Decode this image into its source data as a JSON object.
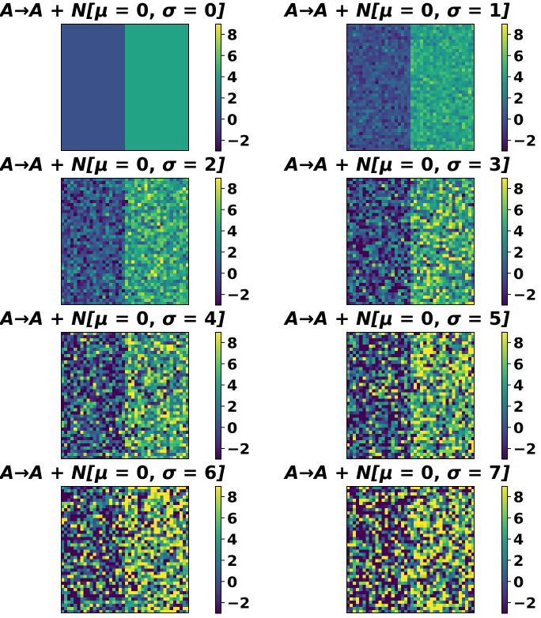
{
  "chart_data": {
    "type": "heatmap",
    "layout": "4 rows x 2 columns",
    "description_of_data": "Each panel shows a 2-region image (left half value 0, right half value 4) with added Gaussian noise N[mu, sigma].",
    "base_image": {
      "rows": 40,
      "cols": 40,
      "left_value": 0,
      "right_value": 4
    },
    "colormap": "viridis",
    "clim": [
      -3,
      9
    ],
    "colorbar_ticks": [
      8,
      6,
      4,
      2,
      0,
      -2
    ],
    "colorbar_tick_labels": [
      "8",
      "6",
      "4",
      "2",
      "0",
      "−2"
    ],
    "panels": [
      {
        "title": {
          "lhs": "A",
          "arrow": "→",
          "rhs": "A + N[",
          "mu_sym": "μ",
          "mu_eq": " = 0, ",
          "sigma_sym": "σ",
          "sigma_eq": " = ",
          "sigma": "0",
          "close": "]"
        },
        "mu": 0,
        "sigma": 0
      },
      {
        "title": {
          "lhs": "A",
          "arrow": "→",
          "rhs": "A + N[",
          "mu_sym": "μ",
          "mu_eq": " = 0, ",
          "sigma_sym": "σ",
          "sigma_eq": " = ",
          "sigma": "1",
          "close": "]"
        },
        "mu": 0,
        "sigma": 1
      },
      {
        "title": {
          "lhs": "A",
          "arrow": "→",
          "rhs": "A + N[",
          "mu_sym": "μ",
          "mu_eq": " = 0, ",
          "sigma_sym": "σ",
          "sigma_eq": " = ",
          "sigma": "2",
          "close": "]"
        },
        "mu": 0,
        "sigma": 2
      },
      {
        "title": {
          "lhs": "A",
          "arrow": "→",
          "rhs": "A + N[",
          "mu_sym": "μ",
          "mu_eq": " = 0, ",
          "sigma_sym": "σ",
          "sigma_eq": " = ",
          "sigma": "3",
          "close": "]"
        },
        "mu": 0,
        "sigma": 3
      },
      {
        "title": {
          "lhs": "A",
          "arrow": "→",
          "rhs": "A + N[",
          "mu_sym": "μ",
          "mu_eq": " = 0, ",
          "sigma_sym": "σ",
          "sigma_eq": " = ",
          "sigma": "4",
          "close": "]"
        },
        "mu": 0,
        "sigma": 4
      },
      {
        "title": {
          "lhs": "A",
          "arrow": "→",
          "rhs": "A + N[",
          "mu_sym": "μ",
          "mu_eq": " = 0, ",
          "sigma_sym": "σ",
          "sigma_eq": " = ",
          "sigma": "5",
          "close": "]"
        },
        "mu": 0,
        "sigma": 5
      },
      {
        "title": {
          "lhs": "A",
          "arrow": "→",
          "rhs": "A + N[",
          "mu_sym": "μ",
          "mu_eq": " = 0, ",
          "sigma_sym": "σ",
          "sigma_eq": " = ",
          "sigma": "6",
          "close": "]"
        },
        "mu": 0,
        "sigma": 6
      },
      {
        "title": {
          "lhs": "A",
          "arrow": "→",
          "rhs": "A + N[",
          "mu_sym": "μ",
          "mu_eq": " = 0, ",
          "sigma_sym": "σ",
          "sigma_eq": " = ",
          "sigma": "7",
          "close": "]"
        },
        "mu": 0,
        "sigma": 7
      }
    ],
    "axes_ticks": "hidden",
    "grid": false,
    "legend": "none"
  }
}
